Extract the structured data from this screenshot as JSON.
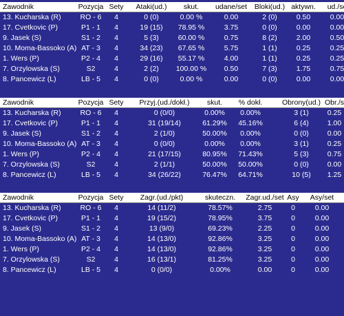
{
  "colors": {
    "background": "#2b2b8f",
    "header_bg": "#ffffff",
    "header_text": "#000000",
    "text": "#ffffff"
  },
  "attack_table": {
    "headers": [
      "Zawodnik",
      "Pozycja",
      "Sety",
      "Ataki(ud.)",
      "skut.",
      "udane/set",
      "Bloki(ud.)",
      "aktywn.",
      "ud./se"
    ],
    "rows": [
      [
        "13. Kucharska (R)",
        "RO - 6",
        "4",
        "0 (0)",
        "0.00 %",
        "0.00",
        "2 (0)",
        "0.50",
        "0.00"
      ],
      [
        "17. Cvetkovic (P)",
        "P1 - 1",
        "4",
        "19 (15)",
        "78.95 %",
        "3.75",
        "0 (0)",
        "0.00",
        "0.00"
      ],
      [
        "9. Jasek (S)",
        "S1 - 2",
        "4",
        "5 (3)",
        "60.00 %",
        "0.75",
        "8 (2)",
        "2.00",
        "0.50"
      ],
      [
        "10. Moma-Bassoko (A)",
        "AT - 3",
        "4",
        "34 (23)",
        "67.65 %",
        "5.75",
        "1 (1)",
        "0.25",
        "0.25"
      ],
      [
        "1. Wers (P)",
        "P2 - 4",
        "4",
        "29 (16)",
        "55.17 %",
        "4.00",
        "1 (1)",
        "0.25",
        "0.25"
      ],
      [
        "7. Orzylowska (S)",
        "S2",
        "4",
        "2 (2)",
        "100.00 %",
        "0.50",
        "7 (3)",
        "1.75",
        "0.75"
      ],
      [
        "8. Pancewicz (L)",
        "LB - 5",
        "4",
        "0 (0)",
        "0.00 %",
        "0.00",
        "0 (0)",
        "0.00",
        "0.00"
      ]
    ]
  },
  "reception_table": {
    "headers": [
      "Zawodnik",
      "Pozycja",
      "Sety",
      "Przyj.(ud./dokł.)",
      "skut.",
      "% dokł.",
      "Obrony(ud.)",
      "Obr./s"
    ],
    "rows": [
      [
        "13. Kucharska (R)",
        "RO - 6",
        "4",
        "0 (0/0)",
        "0.00%",
        "0.00%",
        "3 (1)",
        "0.25"
      ],
      [
        "17. Cvetkovic (P)",
        "P1 - 1",
        "4",
        "31 (19/14)",
        "61.29%",
        "45.16%",
        "6 (4)",
        "1.00"
      ],
      [
        "9. Jasek (S)",
        "S1 - 2",
        "4",
        "2 (1/0)",
        "50.00%",
        "0.00%",
        "0 (0)",
        "0.00"
      ],
      [
        "10. Moma-Bassoko (A)",
        "AT - 3",
        "4",
        "0 (0/0)",
        "0.00%",
        "0.00%",
        "3 (1)",
        "0.25"
      ],
      [
        "1. Wers (P)",
        "P2 - 4",
        "4",
        "21 (17/15)",
        "80.95%",
        "71.43%",
        "5 (3)",
        "0.75"
      ],
      [
        "7. Orzylowska (S)",
        "S2",
        "4",
        "2 (1/1)",
        "50.00%",
        "50.00%",
        "0 (0)",
        "0.00"
      ],
      [
        "8. Pancewicz (L)",
        "LB - 5",
        "4",
        "34 (26/22)",
        "76.47%",
        "64.71%",
        "10 (5)",
        "1.25"
      ]
    ]
  },
  "serve_table": {
    "headers": [
      "Zawodnik",
      "Pozycja",
      "Sety",
      "Zagr.(ud./pkt)",
      "skuteczn.",
      "Zagr.ud./set",
      "Asy",
      "Asy/set"
    ],
    "rows": [
      [
        "13. Kucharska (R)",
        "RO - 6",
        "4",
        "14 (11/2)",
        "78.57%",
        "2.75",
        "0",
        "0.00"
      ],
      [
        "17. Cvetkovic (P)",
        "P1 - 1",
        "4",
        "19 (15/2)",
        "78.95%",
        "3.75",
        "0",
        "0.00"
      ],
      [
        "9. Jasek (S)",
        "S1 - 2",
        "4",
        "13 (9/0)",
        "69.23%",
        "2.25",
        "0",
        "0.00"
      ],
      [
        "10. Moma-Bassoko (A)",
        "AT - 3",
        "4",
        "14 (13/0)",
        "92.86%",
        "3.25",
        "0",
        "0.00"
      ],
      [
        "1. Wers (P)",
        "P2 - 4",
        "4",
        "14 (13/0)",
        "92.86%",
        "3.25",
        "0",
        "0.00"
      ],
      [
        "7. Orzylowska (S)",
        "S2",
        "4",
        "16 (13/1)",
        "81.25%",
        "3.25",
        "0",
        "0.00"
      ],
      [
        "8. Pancewicz (L)",
        "LB - 5",
        "4",
        "0 (0/0)",
        "0.00%",
        "0.00",
        "0",
        "0.00"
      ]
    ]
  }
}
